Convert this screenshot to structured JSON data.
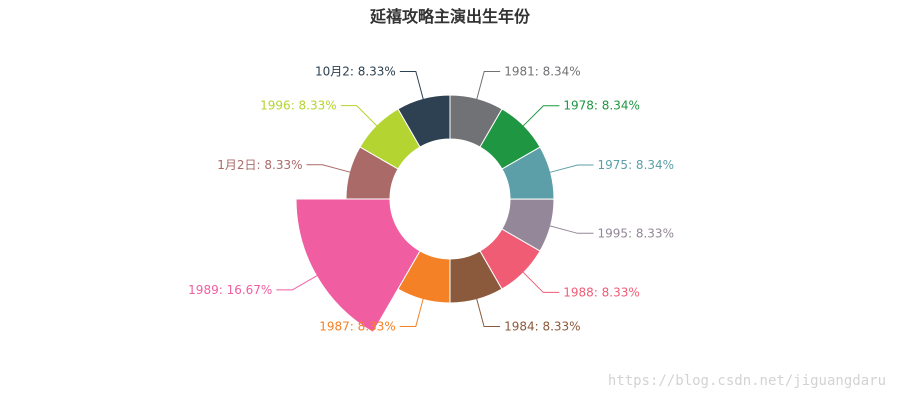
{
  "chart_data": {
    "type": "pie",
    "title": "延禧攻略主演出生年份",
    "donut": true,
    "slices": [
      {
        "label": "1981",
        "value": 8.34,
        "display": "1981: 8.34%",
        "color": "#707275",
        "pulled": false
      },
      {
        "label": "1978",
        "value": 8.34,
        "display": "1978: 8.34%",
        "color": "#1f9641",
        "pulled": false
      },
      {
        "label": "1975",
        "value": 8.34,
        "display": "1975: 8.34%",
        "color": "#5c9fa8",
        "pulled": false
      },
      {
        "label": "1995",
        "value": 8.33,
        "display": "1995: 8.33%",
        "color": "#948799",
        "pulled": false
      },
      {
        "label": "1988",
        "value": 8.33,
        "display": "1988: 8.33%",
        "color": "#f15c75",
        "pulled": false
      },
      {
        "label": "1984",
        "value": 8.33,
        "display": "1984: 8.33%",
        "color": "#8b5a3c",
        "pulled": false
      },
      {
        "label": "1987",
        "value": 8.33,
        "display": "1987: 8.33%",
        "color": "#f58126",
        "pulled": false
      },
      {
        "label": "1989",
        "value": 16.67,
        "display": "1989: 16.67%",
        "color": "#f15da1",
        "pulled": true
      },
      {
        "label": "1月2日",
        "value": 8.33,
        "display": "1月2日: 8.33%",
        "color": "#aa6a68",
        "pulled": false
      },
      {
        "label": "1996",
        "value": 8.33,
        "display": "1996: 8.33%",
        "color": "#b4d431",
        "pulled": false
      },
      {
        "label": "10月2",
        "value": 8.33,
        "display": "10月2: 8.33%",
        "color": "#2d4152",
        "pulled": false
      }
    ]
  },
  "watermark": "https://blog.csdn.net/jiguangdaru"
}
